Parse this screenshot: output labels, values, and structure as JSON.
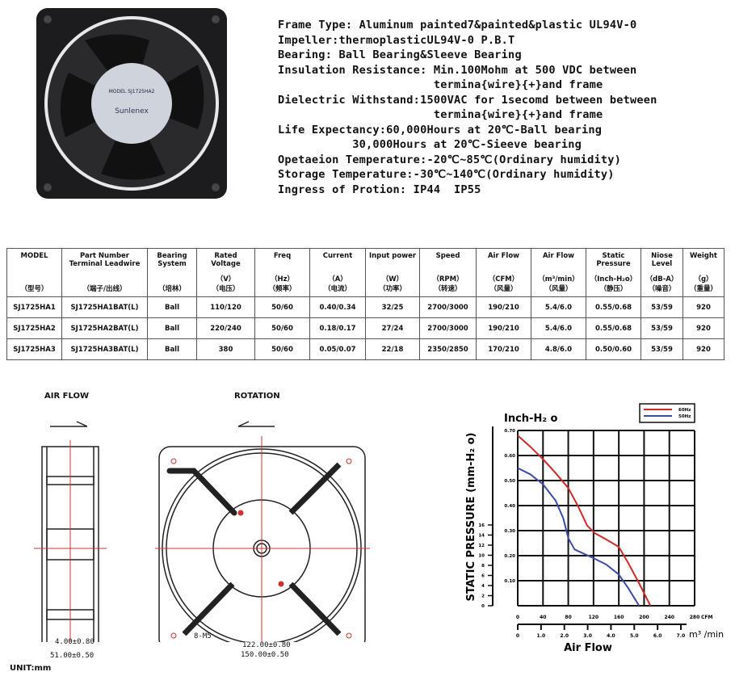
{
  "specs": [
    "Frame Type: Aluminum painted7&painted&plastic UL94V-0",
    "Impeller:thermoplasticUL94V-0 P.B.T",
    "Bearing: Ball Bearing&Sleeve Bearing",
    "Insulation Resistance: Min.100Mohm at 500 VDC between",
    "                       termina{wire}{+}and frame",
    "Dielectric Withstand:1500VAC for 1secomd between between",
    "                       termina{wire}{+}and frame",
    "Life Expectancy:60,000Hours at 20℃-Ball bearing",
    "           30,000Hours at 20℃-Sieeve bearing",
    "Opetaeion Temperature:-20℃~85℃(Ordinary humidity)",
    "Storage Temperature:-30℃~140℃(Ordinary humidity)",
    "Ingress of Protion: IP44  IP55"
  ],
  "table": {
    "headers": [
      {
        "name": "MODEL",
        "unit": "",
        "cn": "（型号）"
      },
      {
        "name": "Part Number Terminal Leadwire",
        "unit": "",
        "cn": "（端子/出线）"
      },
      {
        "name": "Bearing System",
        "unit": "",
        "cn": "（培林）"
      },
      {
        "name": "Rated Voltage",
        "unit": "（V）",
        "cn": "（电压）"
      },
      {
        "name": "Freq",
        "unit": "（Hz）",
        "cn": "（频率）"
      },
      {
        "name": "Current",
        "unit": "（A）",
        "cn": "（电流）"
      },
      {
        "name": "Input power",
        "unit": "（W）",
        "cn": "（功率）"
      },
      {
        "name": "Speed",
        "unit": "（RPM）",
        "cn": "（转速）"
      },
      {
        "name": "Air Flow",
        "unit": "（CFM）",
        "cn": "（风量）"
      },
      {
        "name": "Air Flow",
        "unit": "（m³/min）",
        "cn": "（风量）"
      },
      {
        "name": "Static Pressure",
        "unit": "（Inch-H₂o）",
        "cn": "（静压）"
      },
      {
        "name": "Niose Level",
        "unit": "（dB-A）",
        "cn": "（噪音）"
      },
      {
        "name": "Weight",
        "unit": "（g）",
        "cn": "（重量）"
      }
    ],
    "rows": [
      [
        "SJ1725HA1",
        "SJ1725HA1BAT(L)",
        "Ball",
        "110/120",
        "50/60",
        "0.40/0.34",
        "32/25",
        "2700/3000",
        "190/210",
        "5.4/6.0",
        "0.55/0.68",
        "53/59",
        "920"
      ],
      [
        "SJ1725HA2",
        "SJ1725HA2BAT(L)",
        "Ball",
        "220/240",
        "50/60",
        "0.18/0.17",
        "27/24",
        "2700/3000",
        "190/210",
        "5.4/6.0",
        "0.55/0.68",
        "53/59",
        "920"
      ],
      [
        "SJ1725HA3",
        "SJ1725HA3BAT(L)",
        "Ball",
        "380",
        "50/60",
        "0.05/0.07",
        "22/18",
        "2350/2850",
        "170/210",
        "4.8/6.0",
        "0.50/0.60",
        "53/59",
        "920"
      ]
    ]
  },
  "drawing": {
    "airflow": "AIR FLOW",
    "rotation": "ROTATION",
    "dim1": "4.00±0.80",
    "dim2": "51.00±0.50",
    "holes": "8-M5",
    "dim3": "122.00±0.80",
    "dim4": "150.00±0.50",
    "unit": "UNIT:mm"
  },
  "photo": {
    "label_brand": "Sunlenex",
    "label_model": "MODEL SJ1725HA2"
  },
  "chart_data": {
    "type": "line",
    "title": "Inch-H₂ o",
    "ylabel": "STATIC PRESSURE (mm-H₂ o)",
    "xlabel": "Air Flow",
    "x_unit": "CFM",
    "x2_unit": "m³ /min",
    "xlim": [
      0,
      280
    ],
    "ylim": [
      0,
      0.7
    ],
    "xticks": [
      "0",
      "40",
      "80",
      "120",
      "160",
      "200",
      "240",
      "280"
    ],
    "yticks": [
      "0.10",
      "0.20",
      "0.30",
      "0.40",
      "0.50",
      "0.60",
      "0.70"
    ],
    "y2ticks": [
      "0",
      "2",
      "4",
      "6",
      "8",
      "10",
      "12",
      "14",
      "16"
    ],
    "x2ticks": [
      "0",
      "1.0",
      "2.0",
      "3.0",
      "4.0",
      "5.0",
      "6.0",
      "7.0"
    ],
    "grid": true,
    "legend": "top-right",
    "series": [
      {
        "name": "60Hz",
        "color": "#d0282a",
        "points": [
          [
            0,
            0.68
          ],
          [
            20,
            0.635
          ],
          [
            40,
            0.585
          ],
          [
            60,
            0.53
          ],
          [
            80,
            0.47
          ],
          [
            95,
            0.4
          ],
          [
            110,
            0.32
          ],
          [
            122,
            0.29
          ],
          [
            140,
            0.265
          ],
          [
            160,
            0.235
          ],
          [
            175,
            0.17
          ],
          [
            190,
            0.1
          ],
          [
            202,
            0.04
          ],
          [
            210,
            0
          ]
        ]
      },
      {
        "name": "50Hz",
        "color": "#3a4aa8",
        "points": [
          [
            0,
            0.55
          ],
          [
            20,
            0.525
          ],
          [
            40,
            0.485
          ],
          [
            60,
            0.42
          ],
          [
            72,
            0.35
          ],
          [
            80,
            0.27
          ],
          [
            90,
            0.225
          ],
          [
            120,
            0.19
          ],
          [
            140,
            0.165
          ],
          [
            160,
            0.125
          ],
          [
            175,
            0.07
          ],
          [
            192,
            0
          ]
        ]
      }
    ]
  }
}
